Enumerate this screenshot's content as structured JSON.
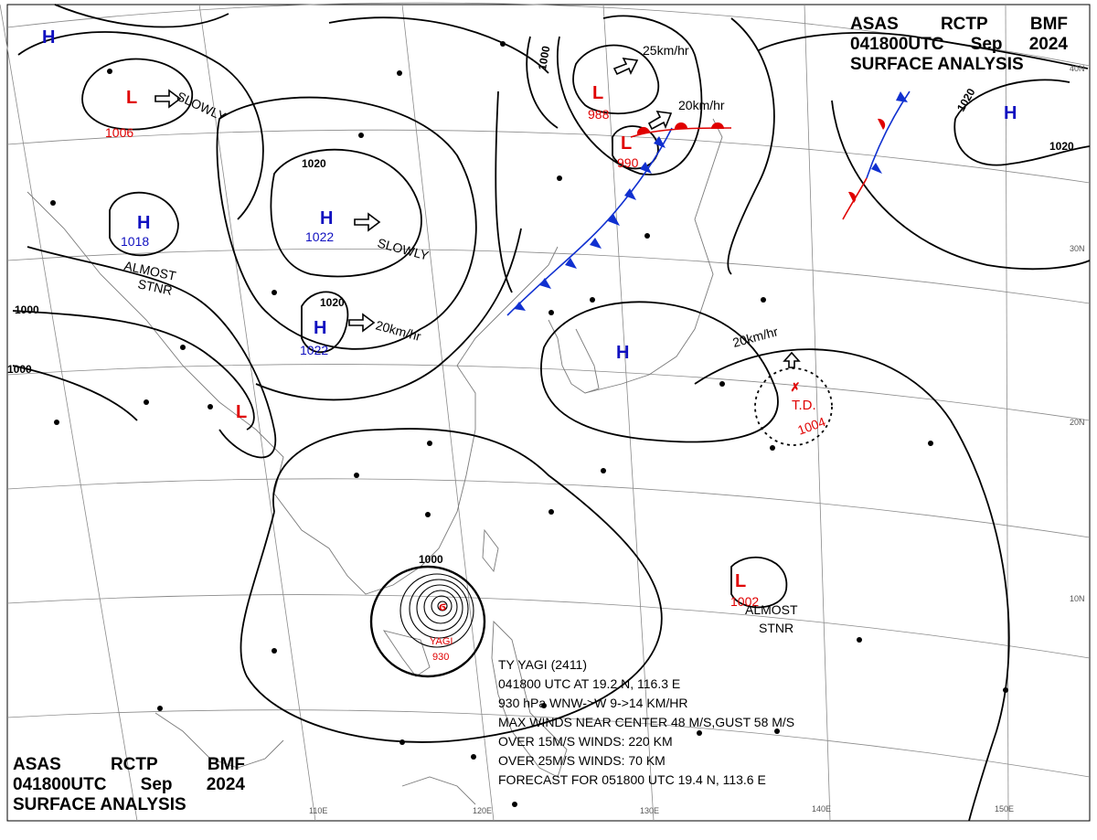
{
  "header_top_right": {
    "line1": [
      "ASAS",
      "RCTP",
      "BMF"
    ],
    "line2": [
      "041800UTC",
      "Sep",
      "2024"
    ],
    "line3": "SURFACE ANALYSIS"
  },
  "header_bottom_left": {
    "line1": [
      "ASAS",
      "RCTP",
      "BMF"
    ],
    "line2": [
      "041800UTC",
      "Sep",
      "2024"
    ],
    "line3": "SURFACE ANALYSIS"
  },
  "latitude_labels": [
    "40N",
    "30N",
    "20N",
    "10N"
  ],
  "longitude_labels": [
    "110E",
    "120E",
    "130E",
    "140E",
    "150E"
  ],
  "isobar_labels": [
    "1000",
    "1000",
    "1000",
    "1020",
    "1020",
    "1020",
    "1020",
    "1000"
  ],
  "pressure_systems": [
    {
      "kind": "H",
      "value": "",
      "color": "#1010c0"
    },
    {
      "kind": "L",
      "value": "1006",
      "color": "#e00000"
    },
    {
      "kind": "H",
      "value": "1018",
      "color": "#1010c0"
    },
    {
      "kind": "H",
      "value": "1022",
      "color": "#1010c0"
    },
    {
      "kind": "H",
      "value": "1022",
      "color": "#1010c0"
    },
    {
      "kind": "L",
      "value": "",
      "color": "#e00000"
    },
    {
      "kind": "L",
      "value": "988",
      "color": "#e00000"
    },
    {
      "kind": "L",
      "value": "990",
      "color": "#e00000"
    },
    {
      "kind": "H",
      "value": "",
      "color": "#1010c0"
    },
    {
      "kind": "H",
      "value": "",
      "color": "#1010c0"
    },
    {
      "kind": "L",
      "value": "1002",
      "color": "#e00000"
    }
  ],
  "movements": [
    "SLOWLY",
    "SLOWLY",
    "20km/hr",
    "25km/hr",
    "20km/hr",
    "20km/hr"
  ],
  "stationary_labels": [
    "ALMOST",
    "STNR",
    "ALMOST",
    "STNR"
  ],
  "tropical_depression": {
    "label": "T.D.",
    "pressure": "1004"
  },
  "typhoon": {
    "name": "YAGI",
    "pressure": "930",
    "lines": [
      "TY  YAGI  (2411)",
      "041800 UTC  AT 19.2 N, 116.3 E",
      "930 hPa  WNW->W  9->14 KM/HR",
      "MAX WINDS NEAR CENTER 48 M/S,GUST 58 M/S",
      "OVER 15M/S WINDS: 220 KM",
      "OVER 25M/S WINDS: 70 KM",
      "FORECAST FOR 051800 UTC 19.4 N, 113.6 E"
    ]
  },
  "colors": {
    "high": "#1010c0",
    "low": "#e00000",
    "cold_front": "#1030d0",
    "warm_front": "#e00000",
    "coast": "#7a7a7a",
    "grid": "#8a8a8a"
  }
}
